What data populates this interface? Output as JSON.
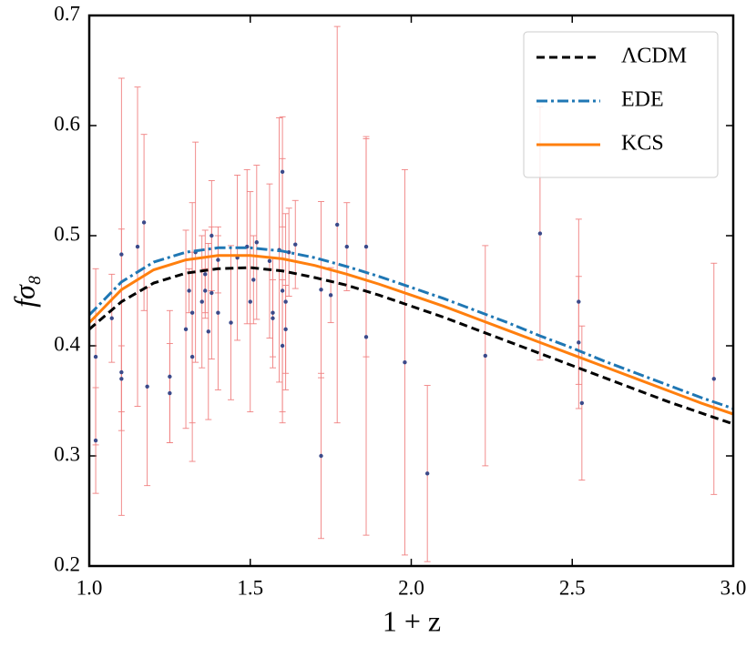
{
  "chart_data": {
    "type": "line",
    "x_label": "1 + z",
    "y_label": "fσ₈",
    "xlim": [
      1.0,
      3.0
    ],
    "ylim": [
      0.2,
      0.7
    ],
    "xticks": [
      {
        "value": 1.0,
        "label": "1.0"
      },
      1.5,
      {
        "value": 2.0,
        "label": "2.0"
      },
      2.5,
      {
        "value": 3.0,
        "label": "3.0"
      }
    ],
    "yticks": [
      0.2,
      0.3,
      0.4,
      0.5,
      0.6,
      0.7
    ],
    "legend": "upper right",
    "x": [
      1.0,
      1.1,
      1.2,
      1.3,
      1.4,
      1.5,
      1.6,
      1.7,
      1.8,
      1.9,
      2.0,
      2.1,
      2.2,
      2.3,
      2.4,
      2.5,
      2.6,
      2.7,
      2.8,
      2.9,
      3.0
    ],
    "series": [
      {
        "name": "ΛCDM",
        "color": "#000000",
        "dash": "dashed",
        "values": [
          0.415,
          0.44,
          0.457,
          0.466,
          0.47,
          0.471,
          0.468,
          0.462,
          0.455,
          0.446,
          0.436,
          0.426,
          0.415,
          0.404,
          0.393,
          0.382,
          0.371,
          0.36,
          0.349,
          0.339,
          0.329
        ]
      },
      {
        "name": "EDE",
        "color": "#1f77b4",
        "dash": "dashdot",
        "values": [
          0.428,
          0.458,
          0.476,
          0.485,
          0.489,
          0.489,
          0.486,
          0.48,
          0.472,
          0.463,
          0.453,
          0.443,
          0.432,
          0.421,
          0.409,
          0.398,
          0.386,
          0.375,
          0.364,
          0.353,
          0.343
        ]
      },
      {
        "name": "KCS",
        "color": "#ff7f0e",
        "dash": "solid",
        "values": [
          0.421,
          0.451,
          0.469,
          0.478,
          0.482,
          0.482,
          0.479,
          0.473,
          0.465,
          0.456,
          0.446,
          0.436,
          0.425,
          0.414,
          0.403,
          0.392,
          0.381,
          0.37,
          0.359,
          0.348,
          0.338
        ]
      }
    ],
    "observations": {
      "type": "scatter",
      "color": "#3b4a8a",
      "error_color": "#f08080",
      "x": [
        1.02,
        1.02,
        1.07,
        1.1,
        1.1,
        1.1,
        1.15,
        1.17,
        1.18,
        1.25,
        1.25,
        1.3,
        1.31,
        1.32,
        1.32,
        1.33,
        1.35,
        1.36,
        1.36,
        1.37,
        1.38,
        1.38,
        1.4,
        1.4,
        1.44,
        1.46,
        1.49,
        1.5,
        1.51,
        1.52,
        1.56,
        1.57,
        1.57,
        1.59,
        1.6,
        1.6,
        1.6,
        1.61,
        1.61,
        1.62,
        1.64,
        1.72,
        1.72,
        1.75,
        1.77,
        1.8,
        1.86,
        1.86,
        1.98,
        2.05,
        2.23,
        2.4,
        2.52,
        2.52,
        2.53,
        2.94
      ],
      "values": [
        0.314,
        0.39,
        0.425,
        0.483,
        0.376,
        0.37,
        0.49,
        0.512,
        0.363,
        0.372,
        0.357,
        0.415,
        0.45,
        0.43,
        0.39,
        0.485,
        0.44,
        0.45,
        0.465,
        0.413,
        0.448,
        0.5,
        0.43,
        0.478,
        0.421,
        0.48,
        0.49,
        0.44,
        0.46,
        0.494,
        0.477,
        0.43,
        0.425,
        0.487,
        0.558,
        0.45,
        0.4,
        0.44,
        0.415,
        0.485,
        0.492,
        0.451,
        0.3,
        0.446,
        0.51,
        0.49,
        0.49,
        0.408,
        0.385,
        0.284,
        0.391,
        0.502,
        0.44,
        0.403,
        0.348,
        0.37
      ],
      "errors": [
        0.048,
        0.08,
        0.04,
        0.16,
        0.13,
        0.03,
        0.145,
        0.08,
        0.09,
        0.06,
        0.045,
        0.09,
        0.02,
        0.1,
        0.095,
        0.1,
        0.06,
        0.02,
        0.04,
        0.08,
        0.06,
        0.05,
        0.07,
        0.03,
        0.07,
        0.075,
        0.07,
        0.1,
        0.04,
        0.07,
        0.07,
        0.05,
        0.035,
        0.12,
        0.05,
        0.12,
        0.06,
        0.08,
        0.04,
        0.04,
        0.04,
        0.08,
        0.075,
        0.025,
        0.18,
        0.04,
        0.1,
        0.18,
        0.175,
        0.08,
        0.1,
        0.115,
        0.075,
        0.06,
        0.07,
        0.105
      ]
    }
  }
}
